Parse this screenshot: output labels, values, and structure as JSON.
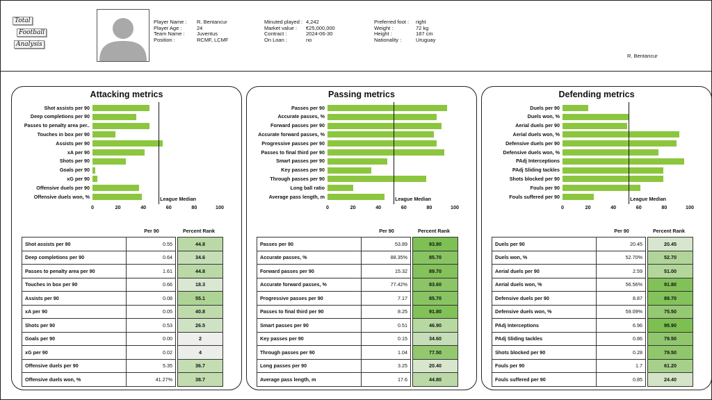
{
  "logo": {
    "line1": "Total",
    "line2": "Football",
    "line3": "Analysis"
  },
  "player": {
    "col1": [
      {
        "k": "Player Name",
        "v": "R. Bentancur"
      },
      {
        "k": "Player Age",
        "v": "24"
      },
      {
        "k": "Team Name",
        "v": "Juventus"
      },
      {
        "k": "Position",
        "v": "RCMF, LCMF"
      }
    ],
    "col2": [
      {
        "k": "Minuted played",
        "v": "4,242"
      },
      {
        "k": "Market value",
        "v": "€25,000,000"
      },
      {
        "k": "Contract",
        "v": "2024-06-30"
      },
      {
        "k": "On Loan",
        "v": "no"
      }
    ],
    "col3": [
      {
        "k": "Preferred foot",
        "v": "right"
      },
      {
        "k": "Weight",
        "v": "72 kg"
      },
      {
        "k": "Height",
        "v": "187 cm"
      },
      {
        "k": "Nationality",
        "v": "Uruguay"
      }
    ],
    "name_right": "R. Bentancur"
  },
  "labels": {
    "per90": "Per 90",
    "rank": "Percent Rank",
    "median": "League Median"
  },
  "colors": {
    "bar": "#8cc63f",
    "rank_high": "#78bd4a",
    "rank_low": "#efefef"
  },
  "chart_data": [
    {
      "type": "bar",
      "orientation": "horizontal",
      "title": "Attacking metrics",
      "xlim": [
        0,
        100
      ],
      "xticks": [
        0,
        20,
        40,
        60,
        80,
        100
      ],
      "median": 52,
      "categories": [
        "Shot assists per 90",
        "Deep completions per 90",
        "Passes to penalty area per..",
        "Touches in box per 90",
        "Assists per 90",
        "xA per 90",
        "Shots per 90",
        "Goals per 90",
        "xG per 90",
        "Offensive duels per 90",
        "Offensive duels won, %"
      ],
      "values": [
        44.8,
        34.6,
        44.8,
        18.3,
        55.1,
        40.8,
        26.5,
        2,
        4,
        36.7,
        38.7
      ],
      "table": {
        "names": [
          "Shot assists per 90",
          "Deep completions per 90",
          "Passes to penalty area per 90",
          "Touches in box per 90",
          "Assists per 90",
          "xA per 90",
          "Shots per 90",
          "Goals per 90",
          "xG per 90",
          "Offensive duels per 90",
          "Offensive duels won, %"
        ],
        "per90": [
          "0.55",
          "0.64",
          "1.61",
          "0.66",
          "0.08",
          "0.05",
          "0.53",
          "0.00",
          "0.02",
          "5.35",
          "41.27%"
        ],
        "rank": [
          "44.8",
          "34.6",
          "44.8",
          "18.3",
          "55.1",
          "40.8",
          "26.5",
          "2",
          "4",
          "36.7",
          "38.7"
        ]
      }
    },
    {
      "type": "bar",
      "orientation": "horizontal",
      "title": "Passing metrics",
      "xlim": [
        0,
        100
      ],
      "xticks": [
        0,
        20,
        40,
        60,
        80,
        100
      ],
      "median": 52,
      "categories": [
        "Passes per 90",
        "Accurate passes, %",
        "Forward passes per 90",
        "Accurate forward passes, %",
        "Progressive passes per 90",
        "Passes to final third per 90",
        "Smart passes per 90",
        "Key passes per 90",
        "Through passes per 90",
        "Long ball ratio",
        "Average pass length, m"
      ],
      "values": [
        93.8,
        85.7,
        89.7,
        83.6,
        85.7,
        91.8,
        46.9,
        34.6,
        77.5,
        20.4,
        44.8
      ],
      "table": {
        "names": [
          "Passes per 90",
          "Accurate passes, %",
          "Forward passes per 90",
          "Accurate forward passes, %",
          "Progressive passes per 90",
          "Passes to final third per 90",
          "Smart passes per 90",
          "Key passes per 90",
          "Through passes per 90",
          "Long passes per 90",
          "Average pass length, m"
        ],
        "per90": [
          "53.89",
          "88.35%",
          "15.32",
          "77.42%",
          "7.17",
          "8.25",
          "0.51",
          "0.15",
          "1.04",
          "3.25",
          "17.6"
        ],
        "rank": [
          "93.80",
          "85.70",
          "89.70",
          "83.60",
          "85.70",
          "91.80",
          "46.90",
          "34.60",
          "77.50",
          "20.40",
          "44.80"
        ]
      }
    },
    {
      "type": "bar",
      "orientation": "horizontal",
      "title": "Defending metrics",
      "xlim": [
        0,
        100
      ],
      "xticks": [
        0,
        20,
        40,
        60,
        80,
        100
      ],
      "median": 52,
      "categories": [
        "Duels per 90",
        "Duels won, %",
        "Aerial duels per 90",
        "Aerial duels won, %",
        "Defensive duels per 90",
        "Defensive duels won, %",
        "PAdj Interceptions",
        "PAdj Sliding tackles",
        "Shots blocked per 90",
        "Fouls per 90",
        "Fouls suffered per 90"
      ],
      "values": [
        20.45,
        52.7,
        51,
        91.8,
        89.7,
        75.5,
        95.9,
        79.5,
        79.5,
        61.2,
        24.4
      ],
      "table": {
        "names": [
          "Duels per 90",
          "Duels won, %",
          "Aerial duels per 90",
          "Aerial duels won, %",
          "Defensive duels per 90",
          "Defensive duels won, %",
          "PAdj Interceptions",
          "PAdj Sliding tackles",
          "Shots blocked per 90",
          "Fouls per 90",
          "Fouls suffered per 90"
        ],
        "per90": [
          "20.45",
          "52.70%",
          "2.59",
          "56.56%",
          "8.87",
          "59.09%",
          "6.96",
          "0.86",
          "0.28",
          "1.7",
          "0.85"
        ],
        "rank": [
          "20.45",
          "52.70",
          "51.00",
          "91.80",
          "89.70",
          "75.50",
          "95.90",
          "79.50",
          "79.50",
          "61.20",
          "24.40"
        ]
      }
    }
  ]
}
